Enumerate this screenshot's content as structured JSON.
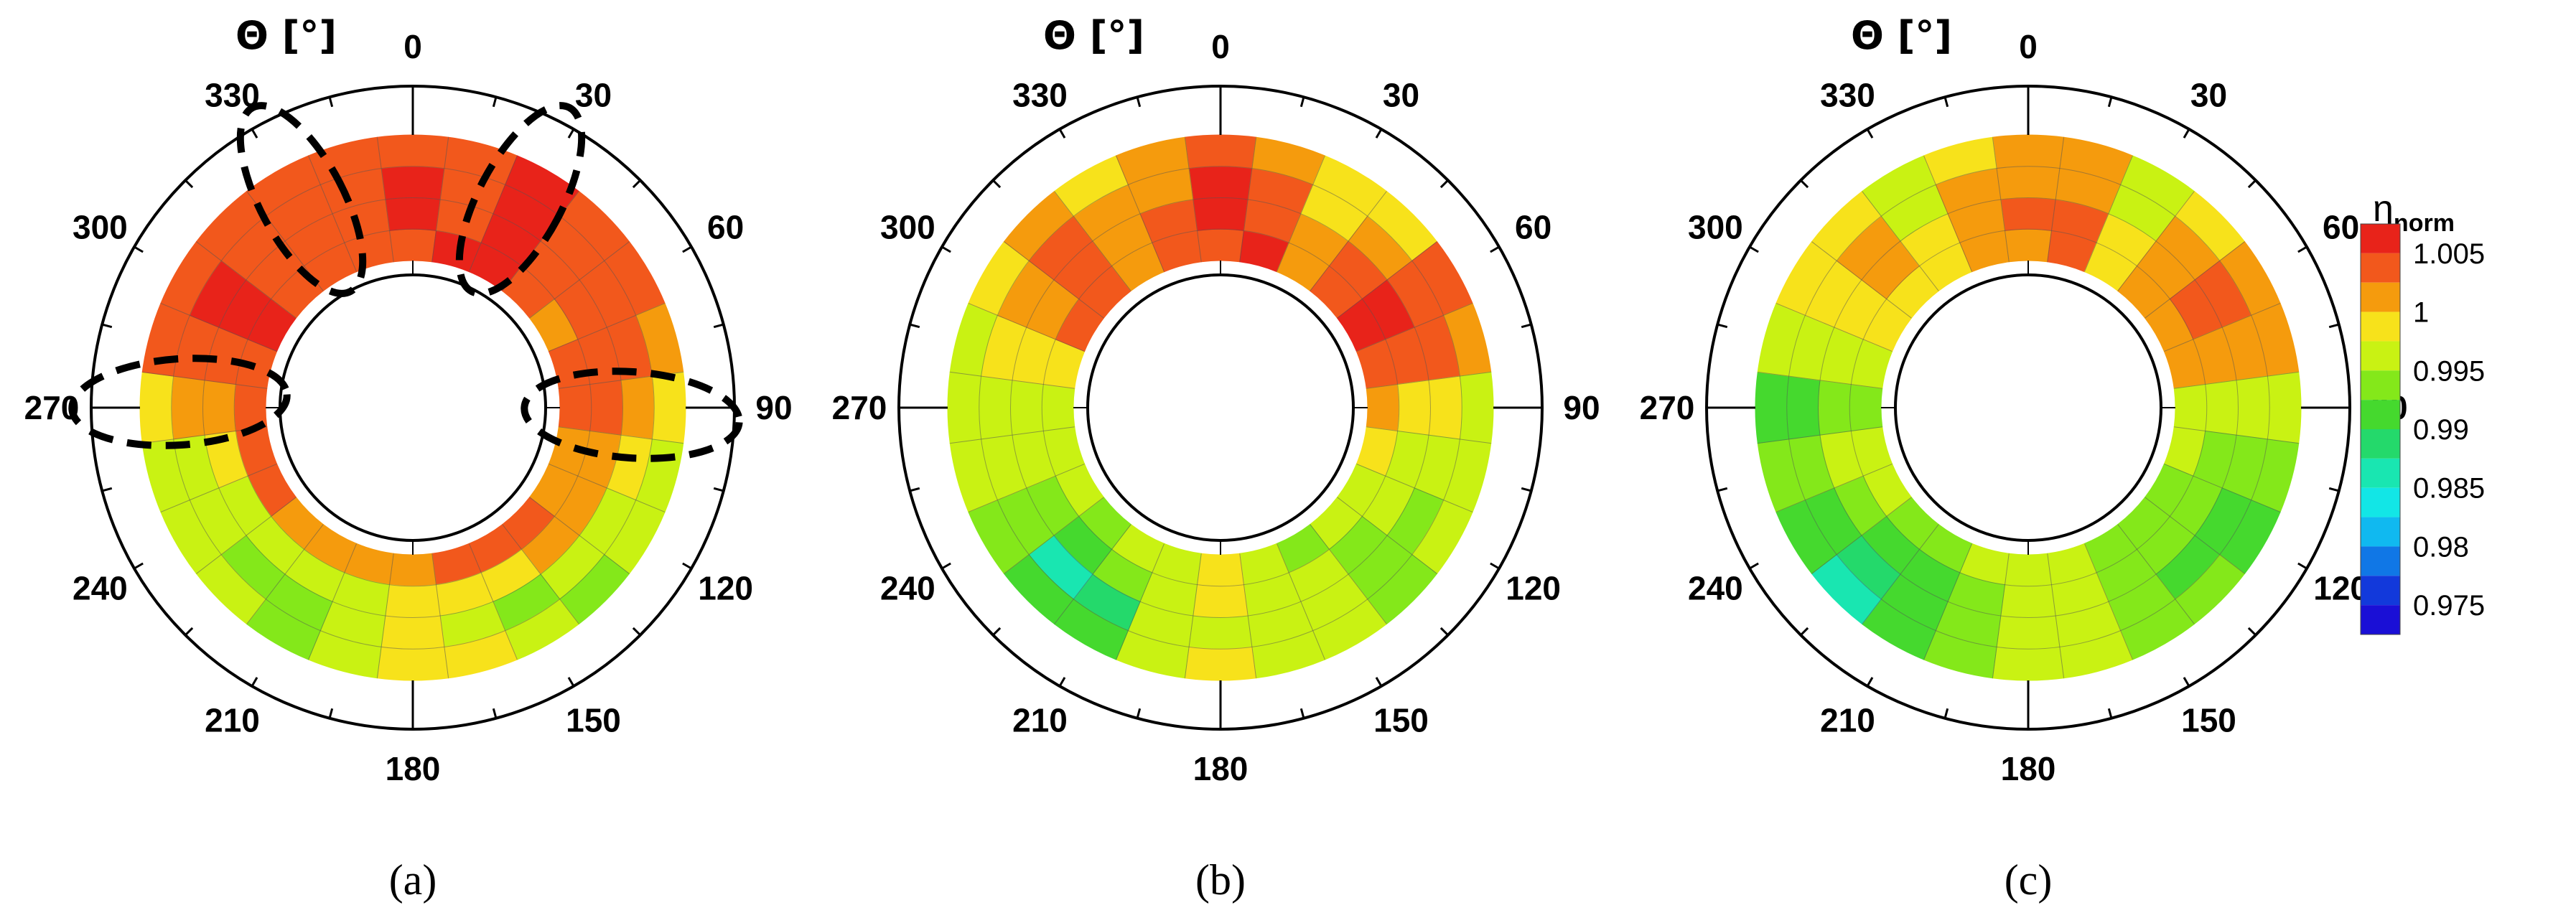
{
  "chart_data": [
    {
      "type": "heatmap",
      "panel_label": "(a)",
      "axis_title": "Θ [°]",
      "angle_ticks": [
        "0",
        "30",
        "60",
        "90",
        "120",
        "150",
        "180",
        "210",
        "240",
        "270",
        "300",
        "330"
      ],
      "angles_deg": [
        0,
        15,
        30,
        45,
        60,
        75,
        90,
        105,
        120,
        135,
        150,
        165,
        180,
        195,
        210,
        225,
        240,
        255,
        270,
        285,
        300,
        315,
        330,
        345
      ],
      "radial_bins": 4,
      "values": [
        [
          1.004,
          1.005,
          1.005,
          1.004,
          1.002,
          1.003,
          1.004,
          1.002,
          1.001,
          1.003,
          1.004,
          1.004,
          1.002,
          1.0,
          1.0,
          1.001,
          1.003,
          1.004,
          1.003,
          1.004,
          1.005,
          1.004,
          1.003,
          1.004
        ],
        [
          1.005,
          1.004,
          1.005,
          1.004,
          1.003,
          1.004,
          1.003,
          1.001,
          1.0,
          1.0,
          0.999,
          0.998,
          0.999,
          0.997,
          0.995,
          0.996,
          0.997,
          0.999,
          1.002,
          1.004,
          1.005,
          1.004,
          1.003,
          1.004
        ],
        [
          1.005,
          1.004,
          1.005,
          1.004,
          1.003,
          1.003,
          1.0,
          0.998,
          0.996,
          0.995,
          0.994,
          0.996,
          0.998,
          0.995,
          0.993,
          0.994,
          0.996,
          0.997,
          1.001,
          1.004,
          1.005,
          1.004,
          1.003,
          1.004
        ],
        [
          1.004,
          1.004,
          1.005,
          1.004,
          1.004,
          1.002,
          0.998,
          0.996,
          0.995,
          0.994,
          0.996,
          0.998,
          0.999,
          0.997,
          0.994,
          0.995,
          0.996,
          0.997,
          0.999,
          1.003,
          1.004,
          1.004,
          1.003,
          1.004
        ]
      ],
      "annotations": [
        "dashed ellipses near 30°, 330°, 90° and 270°"
      ]
    },
    {
      "type": "heatmap",
      "panel_label": "(b)",
      "axis_title": "Θ [°]",
      "angle_ticks": [
        "0",
        "30",
        "60",
        "90",
        "120",
        "150",
        "180",
        "210",
        "240",
        "270",
        "300",
        "330"
      ],
      "angles_deg": [
        0,
        15,
        30,
        45,
        60,
        75,
        90,
        105,
        120,
        135,
        150,
        165,
        180,
        195,
        210,
        225,
        240,
        255,
        270,
        285,
        300,
        315,
        330,
        345
      ],
      "radial_bins": 4,
      "values": [
        [
          1.004,
          1.005,
          1.002,
          1.004,
          1.005,
          1.004,
          1.0,
          0.998,
          0.996,
          0.995,
          0.994,
          0.997,
          0.998,
          0.997,
          0.995,
          0.994,
          0.996,
          0.997,
          0.997,
          0.999,
          1.003,
          1.004,
          1.002,
          1.003
        ],
        [
          1.005,
          1.004,
          1.001,
          1.003,
          1.005,
          1.004,
          0.999,
          0.996,
          0.995,
          0.994,
          0.995,
          0.997,
          0.998,
          0.996,
          0.993,
          0.991,
          0.994,
          0.996,
          0.996,
          0.999,
          1.002,
          1.004,
          1.001,
          1.003
        ],
        [
          1.005,
          1.003,
          0.999,
          1.001,
          1.004,
          1.003,
          0.998,
          0.995,
          0.994,
          0.993,
          0.995,
          0.997,
          0.997,
          0.995,
          0.989,
          0.987,
          0.993,
          0.996,
          0.995,
          0.998,
          1.001,
          1.003,
          1.0,
          1.002
        ],
        [
          1.004,
          1.002,
          0.998,
          0.999,
          1.003,
          1.002,
          0.997,
          0.995,
          0.995,
          0.994,
          0.996,
          0.997,
          0.998,
          0.996,
          0.992,
          0.99,
          0.994,
          0.996,
          0.995,
          0.997,
          0.999,
          1.001,
          0.999,
          1.001
        ]
      ]
    },
    {
      "type": "heatmap",
      "panel_label": "(c)",
      "axis_title": "Θ [°]",
      "angle_ticks": [
        "0",
        "30",
        "60",
        "90",
        "120",
        "150",
        "180",
        "210",
        "240",
        "270",
        "300",
        "330"
      ],
      "angles_deg": [
        0,
        15,
        30,
        45,
        60,
        75,
        90,
        105,
        120,
        135,
        150,
        165,
        180,
        195,
        210,
        225,
        240,
        255,
        270,
        285,
        300,
        315,
        330,
        345
      ],
      "radial_bins": 4,
      "values": [
        [
          1.002,
          1.004,
          0.999,
          1.001,
          1.002,
          1.0,
          0.997,
          0.995,
          0.994,
          0.993,
          0.994,
          0.996,
          0.996,
          0.995,
          0.994,
          0.993,
          0.995,
          0.996,
          0.994,
          0.997,
          0.998,
          0.999,
          0.998,
          1.0
        ],
        [
          1.003,
          1.003,
          0.998,
          1.002,
          1.004,
          1.001,
          0.996,
          0.994,
          0.993,
          0.993,
          0.994,
          0.995,
          0.996,
          0.994,
          0.992,
          0.99,
          0.993,
          0.995,
          0.993,
          0.996,
          0.999,
          1.0,
          0.998,
          1.001
        ],
        [
          1.002,
          1.002,
          0.997,
          1.001,
          1.003,
          1.001,
          0.995,
          0.993,
          0.992,
          0.992,
          0.993,
          0.995,
          0.995,
          0.993,
          0.99,
          0.988,
          0.992,
          0.994,
          0.992,
          0.996,
          0.999,
          1.0,
          0.997,
          1.0
        ],
        [
          1.001,
          1.001,
          0.996,
          0.999,
          1.001,
          1.0,
          0.995,
          0.993,
          0.992,
          0.993,
          0.994,
          0.995,
          0.995,
          0.993,
          0.99,
          0.987,
          0.991,
          0.994,
          0.991,
          0.995,
          0.998,
          0.999,
          0.997,
          0.999
        ]
      ]
    }
  ],
  "colorbar": {
    "title": "η",
    "title_sub": "norm",
    "tick_labels": [
      "1.005",
      "1",
      "0.995",
      "0.99",
      "0.985",
      "0.98",
      "0.975"
    ],
    "tick_values": [
      1.005,
      1.0,
      0.995,
      0.99,
      0.985,
      0.98,
      0.975
    ],
    "range": [
      0.9725,
      1.0075
    ],
    "levels": [
      {
        "min": 1.005,
        "max": 1.0075,
        "color": "#e8231a"
      },
      {
        "min": 1.0025,
        "max": 1.005,
        "color": "#f2581c"
      },
      {
        "min": 1.0,
        "max": 1.0025,
        "color": "#f59b0d"
      },
      {
        "min": 0.9975,
        "max": 1.0,
        "color": "#f7e21b"
      },
      {
        "min": 0.995,
        "max": 0.9975,
        "color": "#c9f213"
      },
      {
        "min": 0.9925,
        "max": 0.995,
        "color": "#84e81a"
      },
      {
        "min": 0.99,
        "max": 0.9925,
        "color": "#45d92e"
      },
      {
        "min": 0.9875,
        "max": 0.99,
        "color": "#24d96b"
      },
      {
        "min": 0.985,
        "max": 0.9875,
        "color": "#19e6b1"
      },
      {
        "min": 0.9825,
        "max": 0.985,
        "color": "#12e6e6"
      },
      {
        "min": 0.98,
        "max": 0.9825,
        "color": "#10b9f0"
      },
      {
        "min": 0.9775,
        "max": 0.98,
        "color": "#1077e6"
      },
      {
        "min": 0.975,
        "max": 0.9775,
        "color": "#1239db"
      },
      {
        "min": 0.9725,
        "max": 0.975,
        "color": "#1a0fd6"
      }
    ]
  }
}
